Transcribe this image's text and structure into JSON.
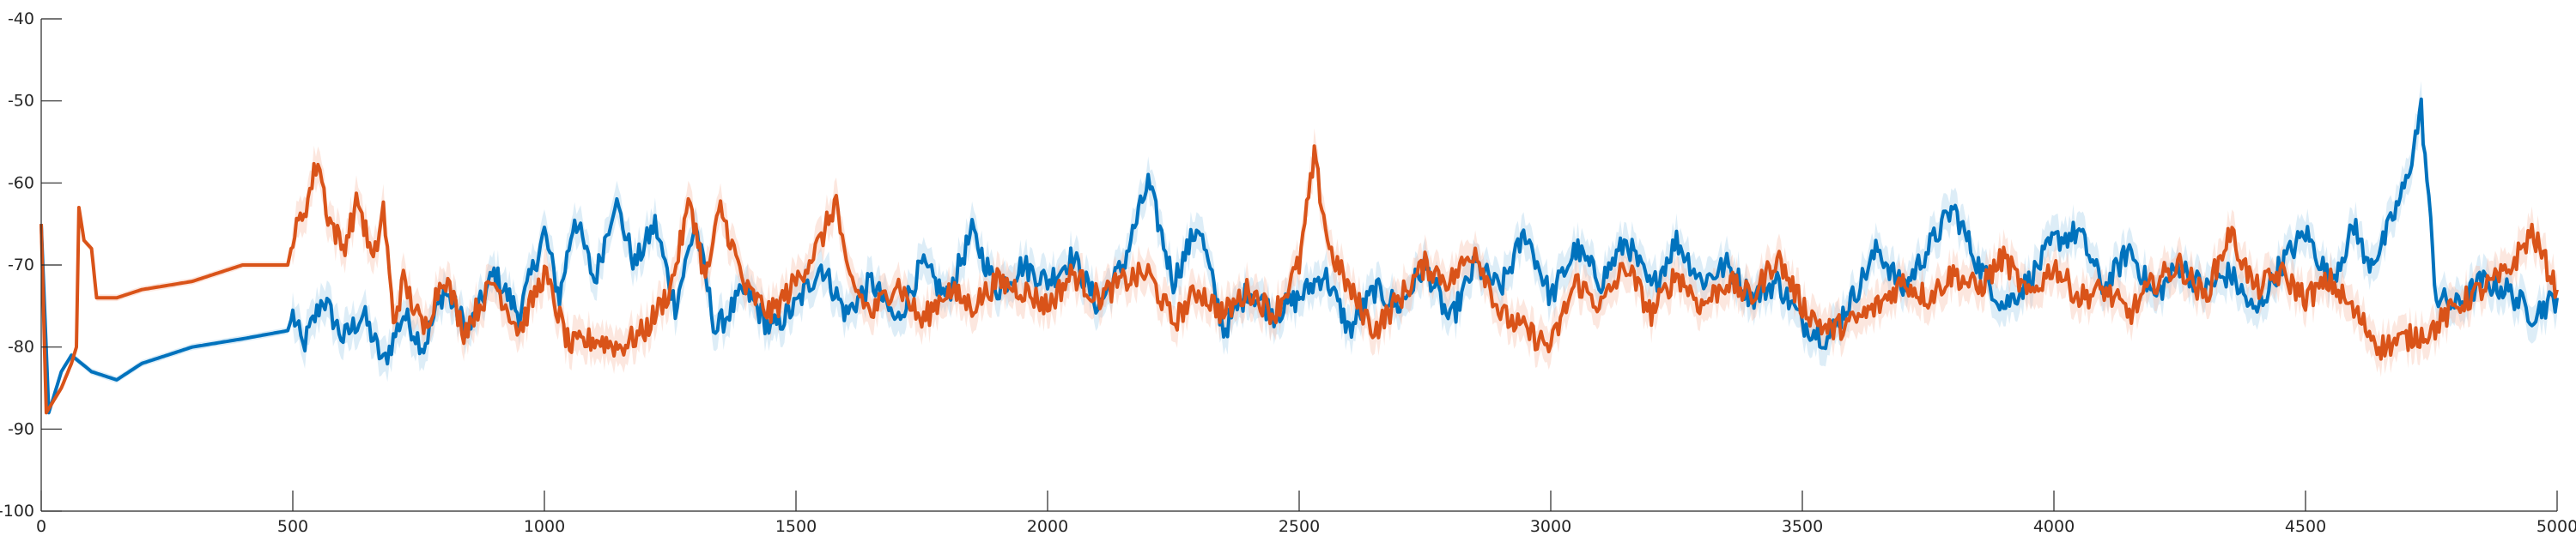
{
  "chart_data": {
    "type": "line",
    "title": "",
    "xlabel": "",
    "ylabel": "",
    "xlim": [
      0,
      5000
    ],
    "ylim": [
      -100,
      -40
    ],
    "xticks": [
      "0",
      "500",
      "1000",
      "1500",
      "2000",
      "2500",
      "3000",
      "3500",
      "4000",
      "4500",
      "5000"
    ],
    "yticks": [
      "-100",
      "-90",
      "-80",
      "-70",
      "-60",
      "-50",
      "-40"
    ],
    "grid": false,
    "legend": "none",
    "series": [
      {
        "color": "#0072BD",
        "band_color": "#9ECAE9",
        "points": [
          [
            0,
            -65
          ],
          [
            15,
            -88
          ],
          [
            40,
            -83
          ],
          [
            60,
            -81
          ],
          [
            80,
            -82
          ],
          [
            100,
            -83
          ],
          [
            150,
            -84
          ],
          [
            200,
            -82
          ],
          [
            300,
            -80
          ],
          [
            400,
            -79
          ],
          [
            490,
            -78
          ],
          [
            500,
            -76
          ],
          [
            520,
            -80
          ],
          [
            560,
            -74
          ],
          [
            600,
            -79
          ],
          [
            640,
            -76
          ],
          [
            680,
            -82
          ],
          [
            720,
            -76
          ],
          [
            760,
            -80
          ],
          [
            800,
            -73
          ],
          [
            850,
            -78
          ],
          [
            900,
            -71
          ],
          [
            950,
            -76
          ],
          [
            1000,
            -66
          ],
          [
            1030,
            -74
          ],
          [
            1060,
            -64
          ],
          [
            1100,
            -72
          ],
          [
            1140,
            -62
          ],
          [
            1180,
            -70
          ],
          [
            1220,
            -65
          ],
          [
            1260,
            -75
          ],
          [
            1300,
            -65
          ],
          [
            1340,
            -78
          ],
          [
            1400,
            -73
          ],
          [
            1450,
            -78
          ],
          [
            1500,
            -75
          ],
          [
            1550,
            -70
          ],
          [
            1600,
            -76
          ],
          [
            1650,
            -72
          ],
          [
            1700,
            -77
          ],
          [
            1750,
            -70
          ],
          [
            1800,
            -74
          ],
          [
            1850,
            -66
          ],
          [
            1900,
            -73
          ],
          [
            1950,
            -70
          ],
          [
            2000,
            -72
          ],
          [
            2050,
            -69
          ],
          [
            2100,
            -75
          ],
          [
            2150,
            -70
          ],
          [
            2200,
            -60
          ],
          [
            2250,
            -72
          ],
          [
            2300,
            -65
          ],
          [
            2350,
            -78
          ],
          [
            2400,
            -73
          ],
          [
            2450,
            -76
          ],
          [
            2500,
            -74
          ],
          [
            2550,
            -71
          ],
          [
            2600,
            -78
          ],
          [
            2650,
            -73
          ],
          [
            2700,
            -75
          ],
          [
            2750,
            -70
          ],
          [
            2800,
            -77
          ],
          [
            2850,
            -70
          ],
          [
            2900,
            -73
          ],
          [
            2950,
            -66
          ],
          [
            3000,
            -74
          ],
          [
            3050,
            -68
          ],
          [
            3100,
            -72
          ],
          [
            3150,
            -67
          ],
          [
            3200,
            -73
          ],
          [
            3250,
            -67
          ],
          [
            3300,
            -72
          ],
          [
            3350,
            -70
          ],
          [
            3400,
            -74
          ],
          [
            3450,
            -72
          ],
          [
            3500,
            -77
          ],
          [
            3550,
            -79
          ],
          [
            3600,
            -74
          ],
          [
            3650,
            -68
          ],
          [
            3700,
            -73
          ],
          [
            3750,
            -68
          ],
          [
            3800,
            -63
          ],
          [
            3850,
            -70
          ],
          [
            3900,
            -75
          ],
          [
            3950,
            -72
          ],
          [
            4000,
            -67
          ],
          [
            4050,
            -66
          ],
          [
            4100,
            -73
          ],
          [
            4150,
            -68
          ],
          [
            4200,
            -74
          ],
          [
            4250,
            -70
          ],
          [
            4300,
            -73
          ],
          [
            4350,
            -71
          ],
          [
            4400,
            -76
          ],
          [
            4450,
            -70
          ],
          [
            4500,
            -66
          ],
          [
            4550,
            -72
          ],
          [
            4600,
            -65
          ],
          [
            4620,
            -70
          ],
          [
            4650,
            -68
          ],
          [
            4700,
            -60
          ],
          [
            4730,
            -51
          ],
          [
            4760,
            -74
          ],
          [
            4800,
            -75
          ],
          [
            4850,
            -72
          ],
          [
            4900,
            -73
          ],
          [
            4950,
            -76
          ],
          [
            5000,
            -74
          ]
        ]
      },
      {
        "color": "#D95319",
        "band_color": "#F6B9A2",
        "points": [
          [
            0,
            -65
          ],
          [
            10,
            -88
          ],
          [
            40,
            -85
          ],
          [
            60,
            -82
          ],
          [
            70,
            -80
          ],
          [
            75,
            -63
          ],
          [
            85,
            -67
          ],
          [
            100,
            -68
          ],
          [
            110,
            -74
          ],
          [
            150,
            -74
          ],
          [
            200,
            -73
          ],
          [
            300,
            -72
          ],
          [
            400,
            -70
          ],
          [
            490,
            -70
          ],
          [
            500,
            -67
          ],
          [
            530,
            -62
          ],
          [
            550,
            -57
          ],
          [
            570,
            -64
          ],
          [
            600,
            -68
          ],
          [
            630,
            -62
          ],
          [
            660,
            -70
          ],
          [
            680,
            -63
          ],
          [
            700,
            -77
          ],
          [
            720,
            -72
          ],
          [
            760,
            -78
          ],
          [
            800,
            -71
          ],
          [
            840,
            -78
          ],
          [
            900,
            -72
          ],
          [
            950,
            -78
          ],
          [
            1000,
            -71
          ],
          [
            1050,
            -80
          ],
          [
            1100,
            -79
          ],
          [
            1150,
            -80
          ],
          [
            1200,
            -78
          ],
          [
            1250,
            -73
          ],
          [
            1290,
            -62
          ],
          [
            1320,
            -72
          ],
          [
            1350,
            -63
          ],
          [
            1400,
            -73
          ],
          [
            1450,
            -76
          ],
          [
            1500,
            -72
          ],
          [
            1550,
            -67
          ],
          [
            1580,
            -62
          ],
          [
            1600,
            -71
          ],
          [
            1650,
            -76
          ],
          [
            1700,
            -72
          ],
          [
            1750,
            -77
          ],
          [
            1800,
            -73
          ],
          [
            1850,
            -75
          ],
          [
            1900,
            -72
          ],
          [
            1950,
            -73
          ],
          [
            2000,
            -75
          ],
          [
            2050,
            -71
          ],
          [
            2100,
            -74
          ],
          [
            2150,
            -72
          ],
          [
            2200,
            -71
          ],
          [
            2250,
            -77
          ],
          [
            2300,
            -73
          ],
          [
            2350,
            -76
          ],
          [
            2400,
            -73
          ],
          [
            2450,
            -76
          ],
          [
            2500,
            -70
          ],
          [
            2530,
            -57
          ],
          [
            2560,
            -68
          ],
          [
            2600,
            -73
          ],
          [
            2650,
            -78
          ],
          [
            2700,
            -74
          ],
          [
            2750,
            -70
          ],
          [
            2800,
            -72
          ],
          [
            2850,
            -68
          ],
          [
            2900,
            -76
          ],
          [
            2950,
            -78
          ],
          [
            3000,
            -80
          ],
          [
            3050,
            -72
          ],
          [
            3100,
            -75
          ],
          [
            3150,
            -70
          ],
          [
            3200,
            -76
          ],
          [
            3250,
            -71
          ],
          [
            3300,
            -75
          ],
          [
            3350,
            -72
          ],
          [
            3400,
            -74
          ],
          [
            3450,
            -69
          ],
          [
            3500,
            -75
          ],
          [
            3550,
            -78
          ],
          [
            3600,
            -77
          ],
          [
            3650,
            -75
          ],
          [
            3700,
            -72
          ],
          [
            3750,
            -74
          ],
          [
            3800,
            -71
          ],
          [
            3850,
            -73
          ],
          [
            3900,
            -69
          ],
          [
            3950,
            -74
          ],
          [
            4000,
            -70
          ],
          [
            4050,
            -74
          ],
          [
            4100,
            -73
          ],
          [
            4150,
            -76
          ],
          [
            4200,
            -72
          ],
          [
            4250,
            -70
          ],
          [
            4300,
            -74
          ],
          [
            4350,
            -66
          ],
          [
            4400,
            -73
          ],
          [
            4450,
            -71
          ],
          [
            4500,
            -74
          ],
          [
            4550,
            -72
          ],
          [
            4600,
            -76
          ],
          [
            4650,
            -80
          ],
          [
            4700,
            -79
          ],
          [
            4750,
            -78
          ],
          [
            4800,
            -75
          ],
          [
            4850,
            -73
          ],
          [
            4900,
            -71
          ],
          [
            4950,
            -66
          ],
          [
            5000,
            -73
          ]
        ]
      }
    ]
  }
}
